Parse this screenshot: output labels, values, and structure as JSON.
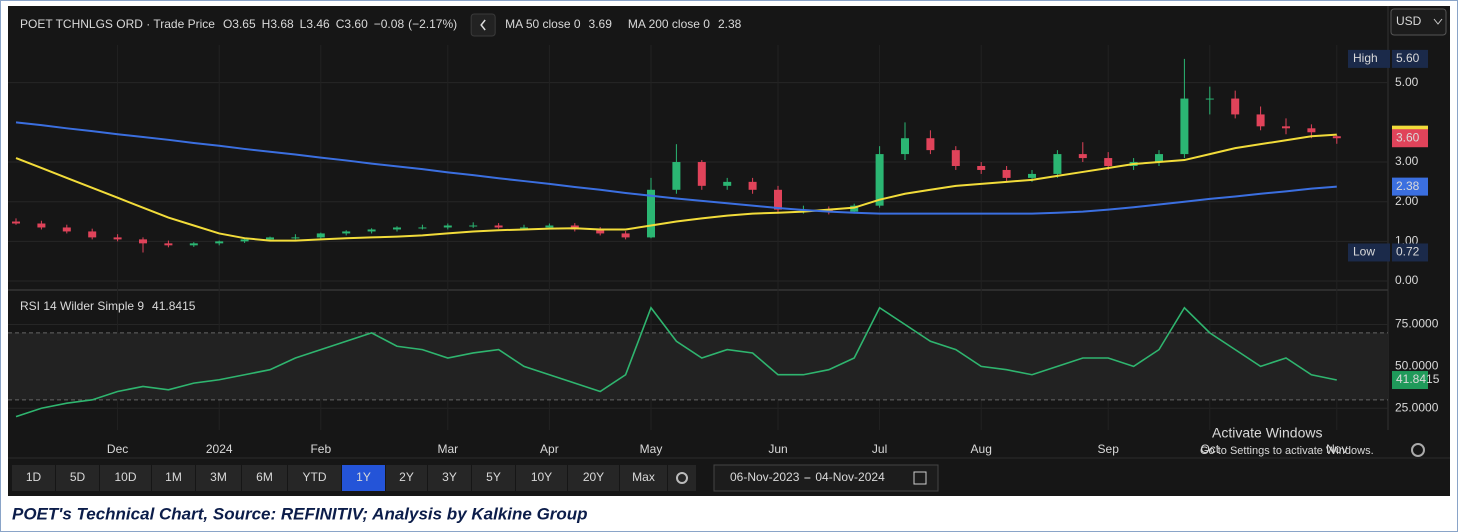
{
  "chart_data": [
    {
      "type": "candlestick",
      "title": "POET TCHNLGS ORD · Trade Price",
      "legend": [
        {
          "name": "O",
          "value": 3.65,
          "label": "3.65"
        },
        {
          "name": "H",
          "value": 3.68,
          "label": "3.68"
        },
        {
          "name": "L",
          "value": 3.46,
          "label": "3.46"
        },
        {
          "name": "C",
          "value": 3.6,
          "label": "3.60"
        }
      ],
      "change": {
        "value": -0.08,
        "label": "−0.08"
      },
      "change_pct": {
        "value": -2.17,
        "label": "(−2.17%)"
      },
      "currency": "USD",
      "open": [
        1.5,
        1.45,
        1.35,
        1.25,
        1.1,
        1.05,
        0.95,
        0.9,
        0.95,
        1.0,
        1.05,
        1.1,
        1.1,
        1.2,
        1.25,
        1.3,
        1.35,
        1.35,
        1.4,
        1.4,
        1.35,
        1.35,
        1.4,
        1.3,
        1.2,
        1.1,
        2.3,
        3.0,
        2.4,
        2.5,
        2.3,
        1.8,
        1.8,
        1.75,
        1.9,
        3.2,
        3.6,
        3.3,
        2.9,
        2.8,
        2.6,
        2.7,
        3.2,
        3.1,
        2.9,
        3.0,
        3.2,
        4.6,
        4.6,
        4.2,
        3.9,
        3.85,
        3.65
      ],
      "high": [
        1.58,
        1.52,
        1.42,
        1.32,
        1.18,
        1.1,
        1.02,
        0.98,
        1.02,
        1.08,
        1.12,
        1.18,
        1.22,
        1.28,
        1.33,
        1.38,
        1.42,
        1.45,
        1.48,
        1.46,
        1.42,
        1.45,
        1.46,
        1.36,
        1.26,
        2.6,
        3.45,
        3.05,
        2.6,
        2.6,
        2.4,
        1.9,
        1.88,
        1.95,
        3.4,
        4.0,
        3.8,
        3.4,
        3.0,
        2.9,
        2.8,
        3.3,
        3.5,
        3.25,
        3.1,
        3.3,
        5.6,
        4.9,
        4.8,
        4.4,
        4.1,
        3.95,
        3.68
      ],
      "low": [
        1.42,
        1.3,
        1.2,
        1.05,
        1.0,
        0.72,
        0.85,
        0.86,
        0.9,
        0.96,
        1.0,
        1.05,
        1.05,
        1.15,
        1.2,
        1.25,
        1.3,
        1.3,
        1.34,
        1.32,
        1.3,
        1.3,
        1.25,
        1.15,
        1.05,
        1.08,
        2.2,
        2.3,
        2.3,
        2.2,
        1.7,
        1.7,
        1.68,
        1.7,
        1.85,
        3.05,
        3.2,
        2.8,
        2.7,
        2.5,
        2.5,
        2.6,
        3.0,
        2.8,
        2.8,
        2.9,
        3.1,
        4.2,
        4.1,
        3.8,
        3.7,
        3.6,
        3.46
      ],
      "close": [
        1.45,
        1.35,
        1.25,
        1.1,
        1.05,
        0.95,
        0.9,
        0.95,
        1.0,
        1.05,
        1.1,
        1.1,
        1.2,
        1.25,
        1.3,
        1.35,
        1.35,
        1.4,
        1.4,
        1.35,
        1.35,
        1.4,
        1.3,
        1.2,
        1.1,
        2.3,
        3.0,
        2.4,
        2.5,
        2.3,
        1.8,
        1.8,
        1.75,
        1.9,
        3.2,
        3.6,
        3.3,
        2.9,
        2.8,
        2.6,
        2.7,
        3.2,
        3.1,
        2.9,
        3.0,
        3.2,
        4.6,
        4.6,
        4.2,
        3.9,
        3.85,
        3.75,
        3.6
      ],
      "up_color": "#2bb673",
      "down_color": "#e0435a",
      "series": [
        {
          "name": "MA 50 close 0",
          "color": "#f2dc3a",
          "values": [
            3.1,
            2.85,
            2.6,
            2.35,
            2.1,
            1.85,
            1.6,
            1.4,
            1.2,
            1.08,
            1.02,
            1.02,
            1.05,
            1.08,
            1.1,
            1.12,
            1.15,
            1.2,
            1.25,
            1.28,
            1.3,
            1.32,
            1.33,
            1.3,
            1.3,
            1.4,
            1.5,
            1.58,
            1.65,
            1.7,
            1.72,
            1.75,
            1.8,
            1.85,
            2.05,
            2.2,
            2.3,
            2.4,
            2.45,
            2.5,
            2.55,
            2.65,
            2.75,
            2.85,
            2.95,
            3.0,
            3.05,
            3.2,
            3.35,
            3.45,
            3.55,
            3.65,
            3.69
          ]
        },
        {
          "name": "MA 200 close 0",
          "color": "#3b6fe0",
          "values": [
            4.0,
            3.93,
            3.85,
            3.78,
            3.7,
            3.63,
            3.56,
            3.48,
            3.41,
            3.33,
            3.26,
            3.19,
            3.11,
            3.04,
            2.96,
            2.89,
            2.82,
            2.74,
            2.67,
            2.59,
            2.52,
            2.45,
            2.37,
            2.3,
            2.22,
            2.15,
            2.08,
            2.02,
            1.96,
            1.9,
            1.84,
            1.79,
            1.75,
            1.72,
            1.7,
            1.7,
            1.7,
            1.7,
            1.7,
            1.7,
            1.7,
            1.72,
            1.75,
            1.8,
            1.86,
            1.93,
            2.0,
            2.07,
            2.13,
            2.2,
            2.26,
            2.33,
            2.38
          ]
        }
      ],
      "high_badge": {
        "name": "High",
        "value": 5.6,
        "label": "5.60"
      },
      "low_badge": {
        "name": "Low",
        "value": 0.72,
        "label": "0.72"
      },
      "ylim": [
        -0.1,
        5.95
      ],
      "yticks": [
        {
          "value": 0,
          "label": "0.00"
        },
        {
          "value": 1,
          "label": "1.00"
        },
        {
          "value": 2,
          "label": "2.00"
        },
        {
          "value": 3,
          "label": "3.00"
        },
        {
          "value": 5,
          "label": "5.00"
        }
      ],
      "grid": true
    },
    {
      "type": "line",
      "title": "RSI 14 Wilder Simple 9",
      "categories": [
        null,
        null,
        null,
        null,
        "Dec",
        null,
        null,
        null,
        "2024",
        null,
        null,
        null,
        "Feb",
        null,
        null,
        null,
        null,
        "Mar",
        null,
        null,
        null,
        "Apr",
        null,
        null,
        null,
        "May",
        null,
        null,
        null,
        null,
        "Jun",
        null,
        null,
        null,
        "Jul",
        null,
        null,
        null,
        "Aug",
        null,
        null,
        null,
        null,
        "Sep",
        null,
        null,
        null,
        "Oct",
        null,
        null,
        null,
        null,
        "Nov"
      ],
      "series": [
        {
          "name": "RSI 14 Wilder Simple 9",
          "color": "#2fb56f",
          "values": [
            20,
            25,
            28,
            30,
            35,
            38,
            36,
            40,
            42,
            45,
            48,
            55,
            60,
            65,
            70,
            62,
            60,
            55,
            58,
            60,
            50,
            45,
            40,
            35,
            45,
            85,
            65,
            55,
            60,
            58,
            45,
            45,
            48,
            55,
            85,
            75,
            65,
            60,
            50,
            48,
            45,
            50,
            55,
            55,
            50,
            60,
            85,
            70,
            60,
            50,
            55,
            45,
            41.8415
          ]
        }
      ],
      "levels": [
        70,
        30
      ],
      "ylim": [
        12,
        95
      ],
      "yticks": [
        {
          "value": 25,
          "label": "25.0000"
        },
        {
          "value": 50,
          "label": "50.0000"
        },
        {
          "value": 75,
          "label": "75.0000"
        }
      ],
      "grid": true
    }
  ],
  "toolbar": {
    "ranges": [
      "1D",
      "5D",
      "10D",
      "1M",
      "3M",
      "6M",
      "YTD",
      "1Y",
      "2Y",
      "3Y",
      "5Y",
      "10Y",
      "20Y",
      "Max"
    ],
    "active": 7,
    "date_from": "06-Nov-2023",
    "date_to": "04-Nov-2024"
  },
  "watermark": [
    "Activate Windows",
    "Go to Settings to activate Windows."
  ],
  "caption": "POET's Technical Chart, Source: REFINITIV; Analysis by Kalkine Group"
}
